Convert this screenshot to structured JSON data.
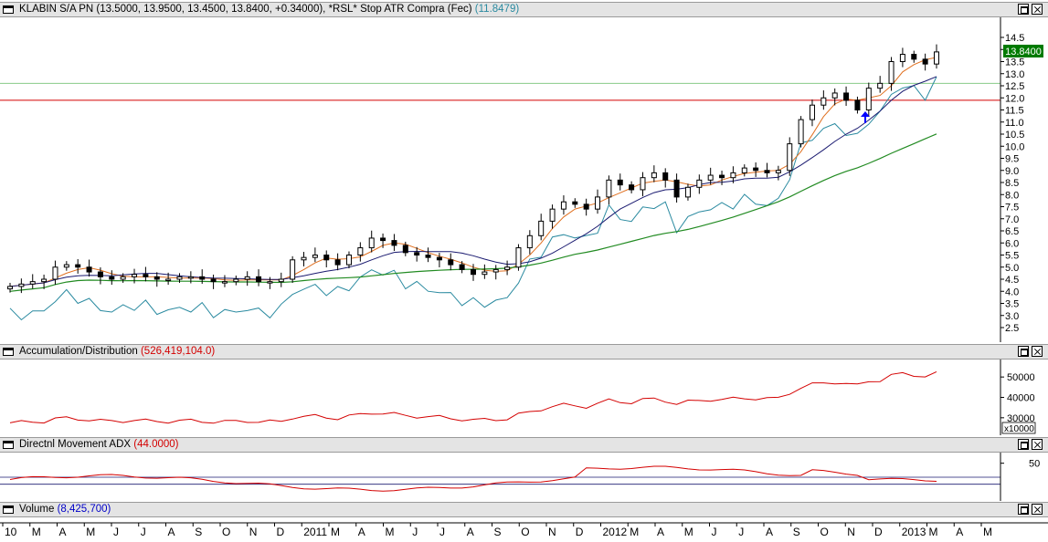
{
  "panes": {
    "price": {
      "title": "KLABIN S/A PN",
      "ohlc": "(13.5000, 13.9500, 13.4500, 13.8400, +0.34000),",
      "indicator": "*RSL* Stop ATR Compra (Fec)",
      "indicator_value": "(11.8479)",
      "last_price": "13.8400"
    },
    "ad": {
      "title": "Accumulation/Distribution",
      "value": "(526,419,104.0)",
      "multiplier": "x10000"
    },
    "adx": {
      "title": "Directnl Movement ADX",
      "value": "(44.0000)"
    },
    "volume": {
      "title": "Volume",
      "value": "(8,425,700)"
    }
  },
  "colors": {
    "price_bg": "#ffffff",
    "red": "#d40000",
    "green": "#228b22",
    "navy": "#1a1a70",
    "orange": "#e07020",
    "teal": "#2a8aa0",
    "bright_green": "#88cc88",
    "arrow": "#0000ff"
  },
  "chart_data": [
    {
      "type": "candlestick",
      "title": "KLABIN S/A PN",
      "yticks": [
        "14.5",
        "14.0",
        "13.5",
        "13.0",
        "12.5",
        "12.0",
        "11.5",
        "11.0",
        "10.5",
        "10.0",
        "9.5",
        "9.0",
        "8.5",
        "8.0",
        "7.5",
        "7.0",
        "6.5",
        "6.0",
        "5.5",
        "5.0",
        "4.5",
        "4.0",
        "3.5",
        "3.0",
        "2.5"
      ],
      "ylim": [
        2.5,
        14.5
      ],
      "x_labels": [
        "10",
        "M",
        "A",
        "M",
        "J",
        "J",
        "A",
        "S",
        "O",
        "N",
        "D",
        "2011",
        "M",
        "A",
        "M",
        "J",
        "J",
        "A",
        "S",
        "O",
        "N",
        "D",
        "2012",
        "M",
        "A",
        "M",
        "J",
        "J",
        "A",
        "S",
        "O",
        "N",
        "D",
        "2013",
        "M",
        "A",
        "M"
      ],
      "close_series": [
        4.2,
        4.3,
        4.4,
        4.5,
        5.0,
        5.1,
        5.0,
        4.8,
        4.6,
        4.5,
        4.6,
        4.7,
        4.6,
        4.5,
        4.5,
        4.6,
        4.6,
        4.5,
        4.4,
        4.4,
        4.5,
        4.6,
        4.4,
        4.4,
        4.5,
        5.3,
        5.4,
        5.5,
        5.3,
        5.1,
        5.5,
        5.8,
        6.2,
        6.1,
        5.9,
        5.6,
        5.5,
        5.4,
        5.3,
        5.1,
        4.9,
        4.7,
        4.8,
        4.9,
        5.0,
        5.8,
        6.3,
        6.9,
        7.4,
        7.7,
        7.6,
        7.4,
        7.9,
        8.6,
        8.4,
        8.2,
        8.7,
        8.9,
        8.6,
        7.9,
        8.3,
        8.6,
        8.8,
        8.7,
        8.9,
        9.1,
        9.0,
        8.9,
        9.0,
        10.1,
        11.1,
        11.7,
        12.0,
        12.2,
        11.9,
        11.5,
        12.4,
        12.6,
        13.5,
        13.8,
        13.6,
        13.4,
        13.9
      ],
      "series": [
        {
          "name": "*RSL* Stop ATR Compra (Fec)",
          "color": "teal"
        },
        {
          "name": "",
          "color": "orange"
        },
        {
          "name": "",
          "color": "navy"
        },
        {
          "name": "",
          "color": "green"
        }
      ],
      "hlines": [
        {
          "value": 12.6,
          "color": "bright_green"
        },
        {
          "value": 11.9,
          "color": "red"
        }
      ]
    },
    {
      "type": "line",
      "title": "Accumulation/Distribution",
      "yticks": [
        "50000",
        "40000",
        "30000"
      ],
      "series": [
        {
          "name": "Accumulation/Distribution",
          "color": "red"
        }
      ]
    },
    {
      "type": "line",
      "title": "Directnl Movement ADX",
      "yticks": [
        "50"
      ],
      "series": [
        {
          "name": "Directnl Movement ADX",
          "color": "red"
        }
      ]
    }
  ]
}
